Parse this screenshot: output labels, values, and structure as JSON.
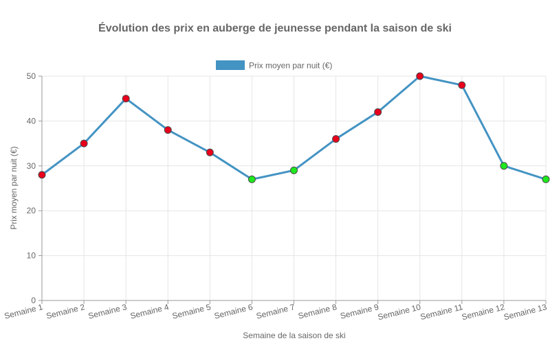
{
  "chart_data": {
    "type": "line",
    "title": "Évolution des prix en auberge de jeunesse pendant la saison de ski",
    "xlabel": "Semaine de la saison de ski",
    "ylabel": "Prix moyen par nuit (€)",
    "categories": [
      "Semaine 1",
      "Semaine 2",
      "Semaine 3",
      "Semaine 4",
      "Semaine 5",
      "Semaine 6",
      "Semaine 7",
      "Semaine 8",
      "Semaine 9",
      "Semaine 10",
      "Semaine 11",
      "Semaine 12",
      "Semaine 13"
    ],
    "series": [
      {
        "name": "Prix moyen par nuit (€)",
        "values": [
          28,
          35,
          45,
          38,
          33,
          27,
          29,
          36,
          42,
          50,
          48,
          30,
          27
        ],
        "color": "#4393c3",
        "point_colors": [
          "#e8001c",
          "#e8001c",
          "#e8001c",
          "#e8001c",
          "#e8001c",
          "#1ee81e",
          "#1ee81e",
          "#e8001c",
          "#e8001c",
          "#e8001c",
          "#e8001c",
          "#1ee81e",
          "#1ee81e"
        ]
      }
    ],
    "ylim": [
      0,
      50
    ],
    "yticks": [
      0,
      10,
      20,
      30,
      40,
      50
    ],
    "grid": true,
    "legend": "top-center"
  }
}
